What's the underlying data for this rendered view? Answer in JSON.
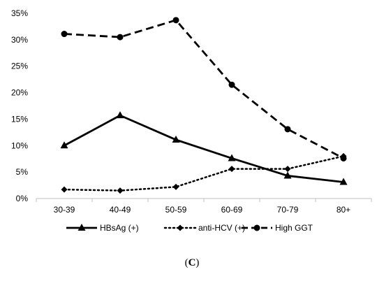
{
  "chart_data": {
    "type": "line",
    "categories": [
      "30-39",
      "40-49",
      "50-59",
      "60-69",
      "70-79",
      "80+"
    ],
    "ylim": [
      0,
      35
    ],
    "yticks": [
      0,
      5,
      10,
      15,
      20,
      25,
      30,
      35
    ],
    "ytick_labels": [
      "0%",
      "5%",
      "10%",
      "15%",
      "20%",
      "25%",
      "30%",
      "35%"
    ],
    "grid": false,
    "legend_position": "bottom",
    "series": [
      {
        "name": "HBsAg (+)",
        "values": [
          10.0,
          15.7,
          11.1,
          7.6,
          4.3,
          3.1
        ],
        "line": "solid",
        "marker": "triangle",
        "color": "#000000"
      },
      {
        "name": "anti-HCV (+)",
        "values": [
          1.7,
          1.5,
          2.2,
          5.6,
          5.6,
          8.0
        ],
        "line": "dotted",
        "marker": "diamond",
        "color": "#000000"
      },
      {
        "name": "High GGT",
        "values": [
          31.1,
          30.5,
          33.7,
          21.5,
          13.1,
          7.6
        ],
        "line": "dashed",
        "marker": "circle",
        "color": "#000000"
      }
    ]
  },
  "panel": {
    "prefix": "(",
    "letter": "C",
    "suffix": ")"
  }
}
